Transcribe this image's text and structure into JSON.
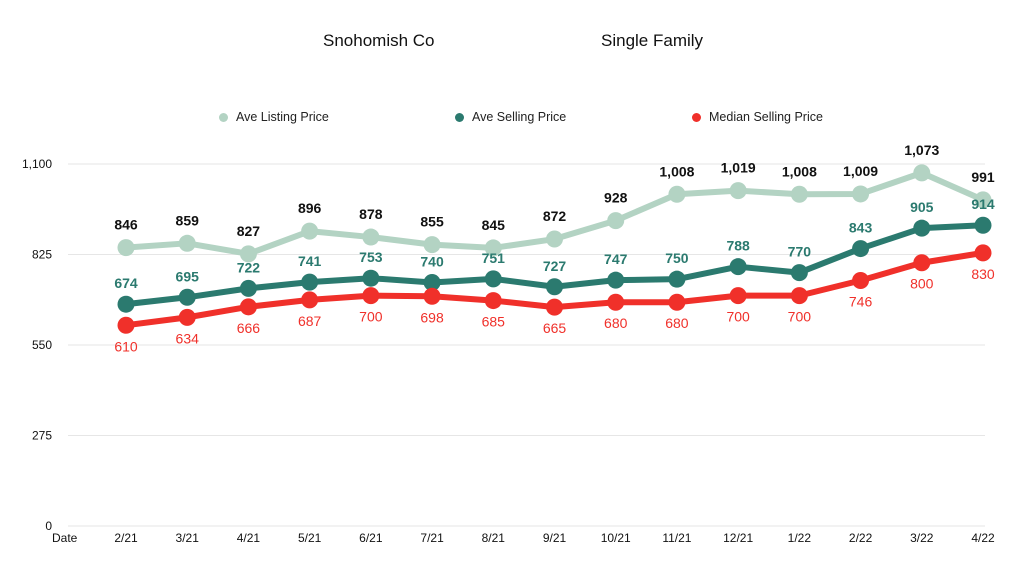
{
  "chart_data": {
    "type": "line",
    "title": "Snohomish Co",
    "subtitle": "Single Family",
    "xlabel": "Date",
    "ylabel": "",
    "ylim": [
      0,
      1100
    ],
    "yticks": [
      0,
      275,
      550,
      825,
      1100
    ],
    "ytick_labels": [
      "0",
      "275",
      "550",
      "825",
      "1,100"
    ],
    "grid": true,
    "legend_position": "top",
    "categories": [
      "2/21",
      "3/21",
      "4/21",
      "5/21",
      "6/21",
      "7/21",
      "8/21",
      "9/21",
      "10/21",
      "11/21",
      "12/21",
      "1/22",
      "2/22",
      "3/22",
      "4/22"
    ],
    "series": [
      {
        "name": "Ave Listing Price",
        "color": "#b3d3c3",
        "label_color": "#111111",
        "values": [
          846,
          859,
          827,
          896,
          878,
          855,
          845,
          872,
          928,
          1008,
          1019,
          1008,
          1009,
          1073,
          991
        ],
        "labels": [
          "846",
          "859",
          "827",
          "896",
          "878",
          "855",
          "845",
          "872",
          "928",
          "1,008",
          "1,019",
          "1,008",
          "1,009",
          "1,073",
          "991"
        ]
      },
      {
        "name": "Ave Selling Price",
        "color": "#2b7a6f",
        "label_color": "#2b7a6f",
        "values": [
          674,
          695,
          722,
          741,
          753,
          740,
          751,
          727,
          747,
          750,
          788,
          770,
          843,
          905,
          914
        ],
        "labels": [
          "674",
          "695",
          "722",
          "741",
          "753",
          "740",
          "751",
          "727",
          "747",
          "750",
          "788",
          "770",
          "843",
          "905",
          "914"
        ]
      },
      {
        "name": "Median Selling Price",
        "color": "#f0302a",
        "label_color": "#f0302a",
        "values": [
          610,
          634,
          666,
          687,
          700,
          698,
          685,
          665,
          680,
          680,
          700,
          700,
          746,
          800,
          830
        ],
        "labels": [
          "610",
          "634",
          "666",
          "687",
          "700",
          "698",
          "685",
          "665",
          "680",
          "680",
          "700",
          "700",
          "746",
          "800",
          "830"
        ]
      }
    ]
  }
}
